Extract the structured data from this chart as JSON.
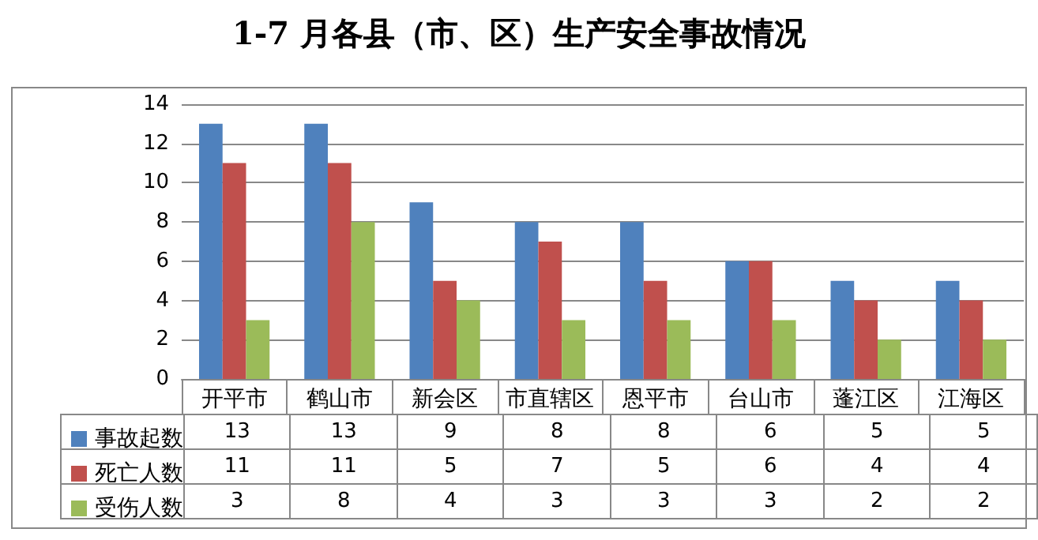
{
  "chart_data": {
    "type": "bar",
    "title": "1-7 月各县（市、区）生产安全事故情况",
    "categories": [
      "开平市",
      "鹤山市",
      "新会区",
      "市直辖区",
      "恩平市",
      "台山市",
      "蓬江区",
      "江海区"
    ],
    "series": [
      {
        "name": "事故起数",
        "color": "#4f81bd",
        "values": [
          13,
          13,
          9,
          8,
          8,
          6,
          5,
          5
        ]
      },
      {
        "name": "死亡人数",
        "color": "#c0504d",
        "values": [
          11,
          11,
          5,
          7,
          5,
          6,
          4,
          4
        ]
      },
      {
        "name": "受伤人数",
        "color": "#9bbb59",
        "values": [
          3,
          8,
          4,
          3,
          3,
          3,
          2,
          2
        ]
      }
    ],
    "ylim": [
      0,
      14
    ],
    "yticks": [
      0,
      2,
      4,
      6,
      8,
      10,
      12,
      14
    ],
    "grid": "y",
    "legend": "bottom left",
    "data_labels": true
  }
}
